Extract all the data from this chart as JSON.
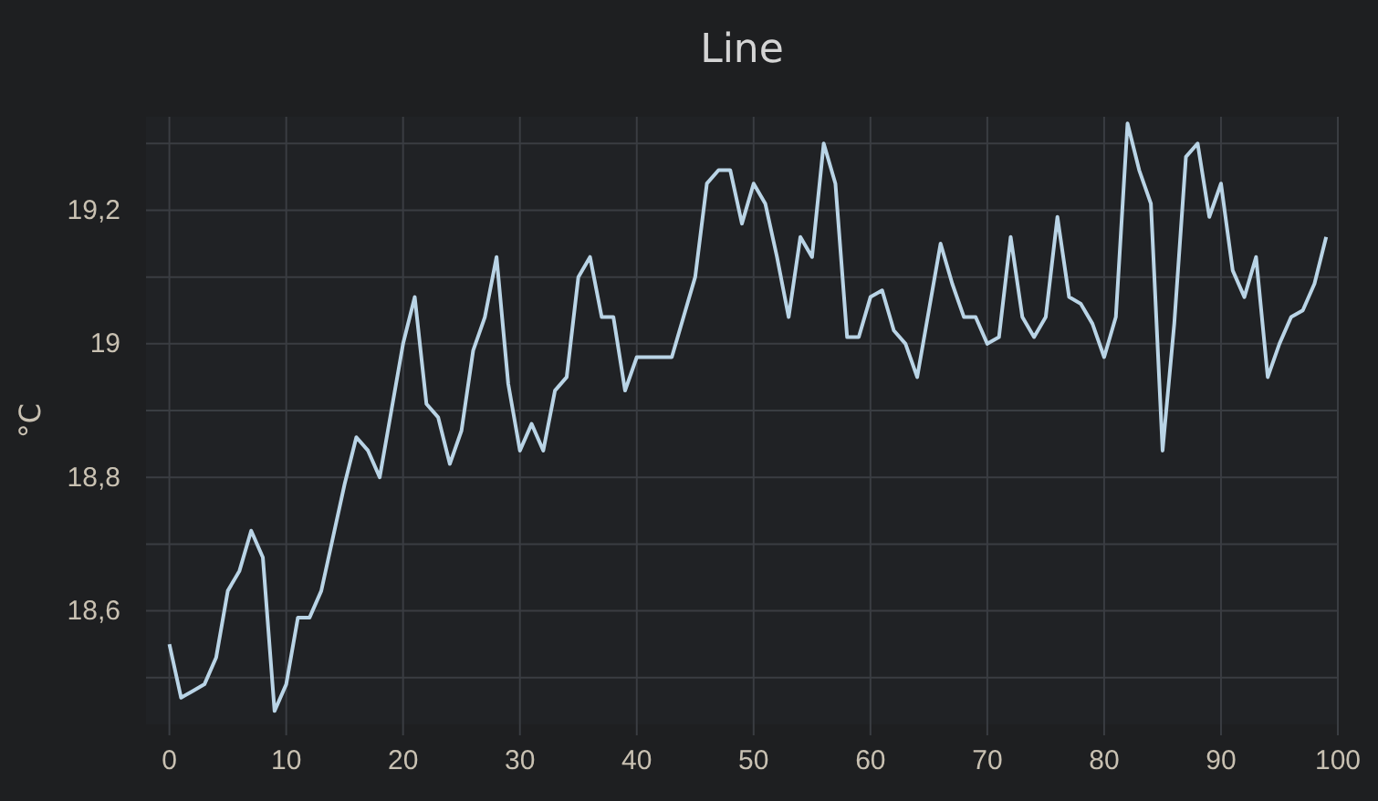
{
  "chart_data": {
    "type": "line",
    "title": "Line",
    "ylabel": "°C",
    "x": [
      0,
      1,
      2,
      3,
      4,
      5,
      6,
      7,
      8,
      9,
      10,
      11,
      12,
      13,
      14,
      15,
      16,
      17,
      18,
      19,
      20,
      21,
      22,
      23,
      24,
      25,
      26,
      27,
      28,
      29,
      30,
      31,
      32,
      33,
      34,
      35,
      36,
      37,
      38,
      39,
      40,
      41,
      42,
      43,
      44,
      45,
      46,
      47,
      48,
      49,
      50,
      51,
      52,
      53,
      54,
      55,
      56,
      57,
      58,
      59,
      60,
      61,
      62,
      63,
      64,
      65,
      66,
      67,
      68,
      69,
      70,
      71,
      72,
      73,
      74,
      75,
      76,
      77,
      78,
      79,
      80,
      81,
      82,
      83,
      84,
      85,
      86,
      87,
      88,
      89,
      90,
      91,
      92,
      93,
      94,
      95,
      96,
      97,
      98,
      99
    ],
    "series": [
      {
        "color": "#b9d4e6",
        "values": [
          18.55,
          18.47,
          18.48,
          18.49,
          18.53,
          18.63,
          18.66,
          18.72,
          18.68,
          18.45,
          18.49,
          18.59,
          18.59,
          18.63,
          18.71,
          18.79,
          18.86,
          18.84,
          18.8,
          18.9,
          19.0,
          19.07,
          18.91,
          18.89,
          18.82,
          18.87,
          18.99,
          19.04,
          19.13,
          18.94,
          18.84,
          18.88,
          18.84,
          18.93,
          18.95,
          19.1,
          19.13,
          19.04,
          19.04,
          18.93,
          18.98,
          18.98,
          18.98,
          18.98,
          19.04,
          19.1,
          19.24,
          19.26,
          19.26,
          19.18,
          19.24,
          19.21,
          19.13,
          19.04,
          19.16,
          19.13,
          19.3,
          19.24,
          19.01,
          19.01,
          19.07,
          19.08,
          19.02,
          19.0,
          18.95,
          19.05,
          19.15,
          19.09,
          19.04,
          19.04,
          19.0,
          19.01,
          19.16,
          19.04,
          19.01,
          19.04,
          19.19,
          19.07,
          19.06,
          19.03,
          18.98,
          19.04,
          19.33,
          19.26,
          19.21,
          18.84,
          19.03,
          19.28,
          19.3,
          19.19,
          19.24,
          19.11,
          19.07,
          19.13,
          18.95,
          19.0,
          19.04,
          19.05,
          19.09,
          19.16
        ]
      }
    ],
    "xlim": [
      -2,
      100
    ],
    "xticks": [
      0,
      10,
      20,
      30,
      40,
      50,
      60,
      70,
      80,
      90,
      100
    ],
    "ylim": [
      18.43,
      19.34
    ],
    "yticks": [
      {
        "value": 18.5,
        "label": null
      },
      {
        "value": 18.6,
        "label": "18,6"
      },
      {
        "value": 18.7,
        "label": null
      },
      {
        "value": 18.8,
        "label": "18,8"
      },
      {
        "value": 18.9,
        "label": null
      },
      {
        "value": 19,
        "label": "19"
      },
      {
        "value": 19.1,
        "label": null
      },
      {
        "value": 19.2,
        "label": "19,2"
      },
      {
        "value": 19.3,
        "label": null
      }
    ],
    "grid": true,
    "marker": "none",
    "line_style": "solid"
  }
}
